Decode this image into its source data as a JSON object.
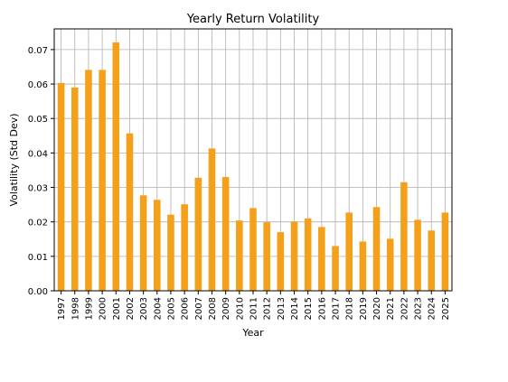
{
  "chart_data": {
    "type": "bar",
    "title": "Yearly Return Volatility",
    "xlabel": "Year",
    "ylabel": "Volatility (Std Dev)",
    "categories": [
      "1997",
      "1998",
      "1999",
      "2000",
      "2001",
      "2002",
      "2003",
      "2004",
      "2005",
      "2006",
      "2007",
      "2008",
      "2009",
      "2010",
      "2011",
      "2012",
      "2013",
      "2014",
      "2015",
      "2016",
      "2017",
      "2018",
      "2019",
      "2020",
      "2021",
      "2022",
      "2023",
      "2024",
      "2025"
    ],
    "series": [
      {
        "values": [
          0.0603,
          0.059,
          0.0641,
          0.0641,
          0.0721,
          0.0457,
          0.0277,
          0.0264,
          0.0221,
          0.0251,
          0.0328,
          0.0413,
          0.033,
          0.0204,
          0.024,
          0.0199,
          0.017,
          0.0201,
          0.021,
          0.0185,
          0.013,
          0.0227,
          0.0143,
          0.0243,
          0.0151,
          0.0315,
          0.0206,
          0.0175,
          0.0227
        ]
      }
    ],
    "ylim": [
      0,
      0.076
    ],
    "yticks": [
      0.0,
      0.01,
      0.02,
      0.03,
      0.04,
      0.05,
      0.06,
      0.07
    ],
    "ytick_labels": [
      "0.00",
      "0.01",
      "0.02",
      "0.03",
      "0.04",
      "0.05",
      "0.06",
      "0.07"
    ],
    "grid": true,
    "bar_color": "#f5a01a"
  }
}
